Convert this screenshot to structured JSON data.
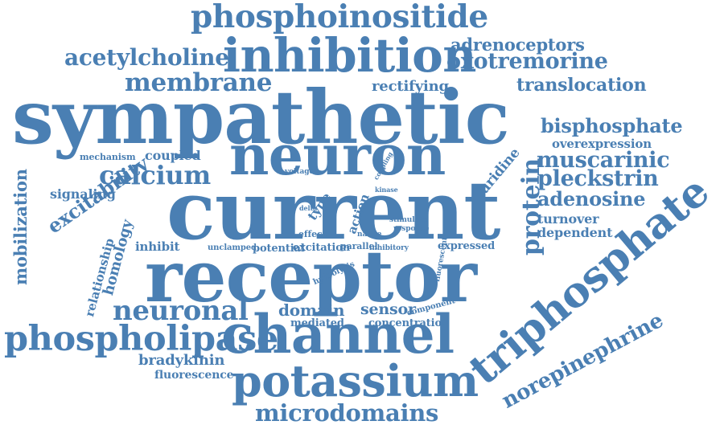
{
  "colors": {
    "word": "#4a7fb3",
    "background": "#ffffff"
  },
  "words": [
    "phosphoinositide",
    "inhibition",
    "acetylcholine",
    "adrenoceptors",
    "oxotremorine",
    "membrane",
    "rectifying",
    "translocation",
    "sympathetic",
    "neuron",
    "bisphosphate",
    "overexpression",
    "mechanism",
    "coupled",
    "calcium",
    "muscarinic",
    "pleckstrin",
    "current",
    "signaling",
    "excitability",
    "adenosine",
    "mobilization",
    "protein",
    "uridine",
    "triphosphate",
    "turnover",
    "dependent",
    "homology",
    "inhibit",
    "unclamped",
    "potential",
    "excitation",
    "parallel",
    "inhibitory",
    "expressed",
    "relationship",
    "receptor",
    "neuronal",
    "domain",
    "sensor",
    "component",
    "mediated",
    "concentration",
    "phospholipase",
    "channel",
    "norepinephrine",
    "bradykinin",
    "fluorescence",
    "potassium",
    "microdomains",
    "voltage",
    "coupling",
    "kinase",
    "type",
    "delta",
    "effect",
    "action",
    "native",
    "stimulate",
    "response",
    "hydrolysis",
    "fluorescent"
  ]
}
